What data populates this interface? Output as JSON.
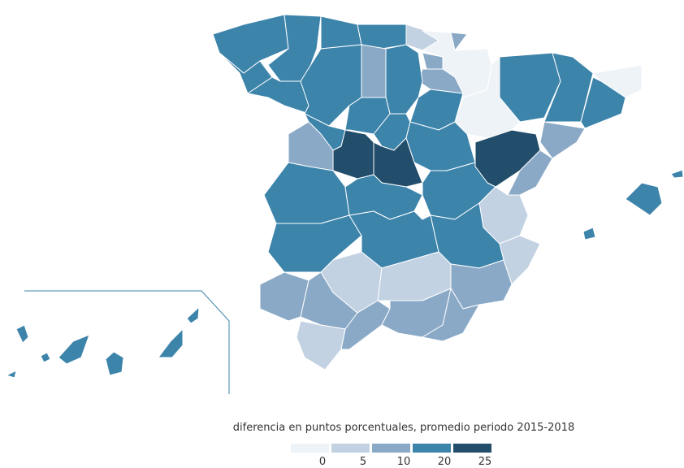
{
  "legend": {
    "title": "diferencia en puntos porcentuales, promedio periodo 2015-2018",
    "ticks": [
      0,
      5,
      10,
      20,
      25
    ],
    "colors": [
      "#eef3f8",
      "#c3d2e2",
      "#8aa9c6",
      "#3d84ab",
      "#234e6b"
    ]
  }
}
